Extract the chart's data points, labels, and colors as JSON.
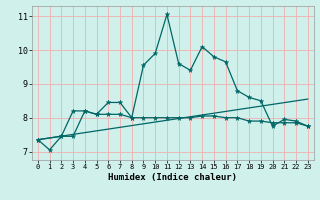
{
  "xlabel": "Humidex (Indice chaleur)",
  "bg_color": "#cff0eb",
  "grid_color_h": "#f0b0b0",
  "grid_color_v": "#f0b0b0",
  "line_color": "#006666",
  "xlim": [
    -0.5,
    23.5
  ],
  "ylim": [
    6.75,
    11.3
  ],
  "xticks": [
    0,
    1,
    2,
    3,
    4,
    5,
    6,
    7,
    8,
    9,
    10,
    11,
    12,
    13,
    14,
    15,
    16,
    17,
    18,
    19,
    20,
    21,
    22,
    23
  ],
  "yticks": [
    7,
    8,
    9,
    10,
    11
  ],
  "series1_x": [
    0,
    1,
    2,
    3,
    4,
    5,
    6,
    7,
    8,
    9,
    10,
    11,
    12,
    13,
    14,
    15,
    16,
    17,
    18,
    19,
    20,
    21,
    22,
    23
  ],
  "series1_y": [
    7.35,
    7.05,
    7.45,
    8.2,
    8.2,
    8.1,
    8.45,
    8.45,
    8.0,
    9.55,
    9.9,
    11.05,
    9.6,
    9.4,
    10.1,
    9.8,
    9.65,
    8.8,
    8.6,
    8.5,
    7.75,
    7.95,
    7.9,
    7.75
  ],
  "series2_x": [
    0,
    2,
    3,
    4,
    5,
    6,
    7,
    8,
    9,
    10,
    11,
    12,
    13,
    14,
    15,
    16,
    17,
    18,
    19,
    20,
    21,
    22,
    23
  ],
  "series2_y": [
    7.35,
    7.45,
    7.45,
    8.2,
    8.1,
    8.1,
    8.1,
    8.0,
    8.0,
    8.0,
    8.0,
    8.0,
    8.0,
    8.05,
    8.05,
    8.0,
    8.0,
    7.9,
    7.9,
    7.85,
    7.85,
    7.85,
    7.75
  ],
  "series3_x": [
    0,
    23
  ],
  "series3_y": [
    7.35,
    8.55
  ]
}
